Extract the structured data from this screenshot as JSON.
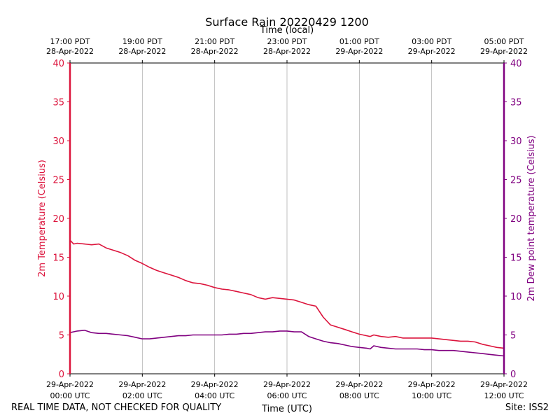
{
  "chart_data": {
    "type": "line",
    "title": "Surface Rain 20220429 1200",
    "top_axis_label": "Time (local)",
    "xlabel": "Time (UTC)",
    "ylabel_left": "2m Temperature (Celsius)",
    "ylabel_right": "2m Dew point temperature (Celsius)",
    "x_units": "hours since 29-Apr-2022 00:00 UTC",
    "xlim": [
      0,
      12
    ],
    "ylim_left": [
      0,
      40
    ],
    "ylim_right": [
      0,
      40
    ],
    "y_ticks": [
      0,
      5,
      10,
      15,
      20,
      25,
      30,
      35,
      40
    ],
    "bottom_ticks": [
      {
        "x": 0,
        "line1": "29-Apr-2022",
        "line2": "00:00 UTC"
      },
      {
        "x": 2,
        "line1": "29-Apr-2022",
        "line2": "02:00 UTC"
      },
      {
        "x": 4,
        "line1": "29-Apr-2022",
        "line2": "04:00 UTC"
      },
      {
        "x": 6,
        "line1": "29-Apr-2022",
        "line2": "06:00 UTC"
      },
      {
        "x": 8,
        "line1": "29-Apr-2022",
        "line2": "08:00 UTC"
      },
      {
        "x": 10,
        "line1": "29-Apr-2022",
        "line2": "10:00 UTC"
      },
      {
        "x": 12,
        "line1": "29-Apr-2022",
        "line2": "12:00 UTC"
      }
    ],
    "top_ticks": [
      {
        "x": 0,
        "line1": "17:00 PDT",
        "line2": "28-Apr-2022"
      },
      {
        "x": 2,
        "line1": "19:00 PDT",
        "line2": "28-Apr-2022"
      },
      {
        "x": 4,
        "line1": "21:00 PDT",
        "line2": "28-Apr-2022"
      },
      {
        "x": 6,
        "line1": "23:00 PDT",
        "line2": "28-Apr-2022"
      },
      {
        "x": 8,
        "line1": "01:00 PDT",
        "line2": "29-Apr-2022"
      },
      {
        "x": 10,
        "line1": "03:00 PDT",
        "line2": "29-Apr-2022"
      },
      {
        "x": 12,
        "line1": "05:00 PDT",
        "line2": "29-Apr-2022"
      }
    ],
    "series": [
      {
        "name": "2m Temperature",
        "axis": "left",
        "color": "#dc143c",
        "x": [
          0,
          0.1,
          0.2,
          0.4,
          0.6,
          0.8,
          1.0,
          1.2,
          1.4,
          1.6,
          1.8,
          2.0,
          2.2,
          2.4,
          2.6,
          2.8,
          3.0,
          3.2,
          3.4,
          3.6,
          3.8,
          4.0,
          4.2,
          4.4,
          4.6,
          4.8,
          5.0,
          5.2,
          5.4,
          5.6,
          5.8,
          6.0,
          6.2,
          6.4,
          6.6,
          6.8,
          7.0,
          7.2,
          7.4,
          7.6,
          7.8,
          8.0,
          8.2,
          8.3,
          8.4,
          8.6,
          8.8,
          9.0,
          9.2,
          9.4,
          9.6,
          9.8,
          10.0,
          10.2,
          10.4,
          10.6,
          10.8,
          11.0,
          11.2,
          11.4,
          11.6,
          11.8,
          12.0
        ],
        "values": [
          17.2,
          16.7,
          16.8,
          16.7,
          16.6,
          16.7,
          16.2,
          15.9,
          15.6,
          15.2,
          14.6,
          14.2,
          13.7,
          13.3,
          13.0,
          12.7,
          12.4,
          12.0,
          11.7,
          11.6,
          11.4,
          11.1,
          10.9,
          10.8,
          10.6,
          10.4,
          10.2,
          9.8,
          9.6,
          9.8,
          9.7,
          9.6,
          9.5,
          9.2,
          8.9,
          8.7,
          7.3,
          6.3,
          6.0,
          5.7,
          5.4,
          5.1,
          4.9,
          4.8,
          5.0,
          4.8,
          4.7,
          4.8,
          4.6,
          4.6,
          4.6,
          4.6,
          4.6,
          4.5,
          4.4,
          4.3,
          4.2,
          4.2,
          4.1,
          3.8,
          3.6,
          3.4,
          3.3
        ]
      },
      {
        "name": "2m Dew point temperature",
        "axis": "right",
        "color": "#800080",
        "x": [
          0,
          0.2,
          0.4,
          0.6,
          0.8,
          1.0,
          1.2,
          1.4,
          1.6,
          1.8,
          2.0,
          2.2,
          2.4,
          2.6,
          2.8,
          3.0,
          3.2,
          3.4,
          3.6,
          3.8,
          4.0,
          4.2,
          4.4,
          4.6,
          4.8,
          5.0,
          5.2,
          5.4,
          5.6,
          5.8,
          6.0,
          6.2,
          6.4,
          6.6,
          6.8,
          7.0,
          7.2,
          7.4,
          7.6,
          7.8,
          8.0,
          8.2,
          8.3,
          8.4,
          8.6,
          8.8,
          9.0,
          9.2,
          9.4,
          9.6,
          9.8,
          10.0,
          10.2,
          10.4,
          10.6,
          10.8,
          11.0,
          11.2,
          11.4,
          11.6,
          11.8,
          12.0
        ],
        "values": [
          5.3,
          5.5,
          5.6,
          5.3,
          5.2,
          5.2,
          5.1,
          5.0,
          4.9,
          4.7,
          4.5,
          4.5,
          4.6,
          4.7,
          4.8,
          4.9,
          4.9,
          5.0,
          5.0,
          5.0,
          5.0,
          5.0,
          5.1,
          5.1,
          5.2,
          5.2,
          5.3,
          5.4,
          5.4,
          5.5,
          5.5,
          5.4,
          5.4,
          4.8,
          4.5,
          4.2,
          4.0,
          3.9,
          3.7,
          3.5,
          3.4,
          3.3,
          3.2,
          3.6,
          3.4,
          3.3,
          3.2,
          3.2,
          3.2,
          3.2,
          3.1,
          3.1,
          3.0,
          3.0,
          3.0,
          2.9,
          2.8,
          2.7,
          2.6,
          2.5,
          2.4,
          2.3
        ]
      }
    ]
  },
  "footer": {
    "disclaimer": "REAL TIME DATA, NOT CHECKED FOR QUALITY",
    "site": "Site: ISS2"
  },
  "colors": {
    "left_axis": "#dc143c",
    "right_axis": "#800080",
    "grid": "#b0b0b0"
  }
}
